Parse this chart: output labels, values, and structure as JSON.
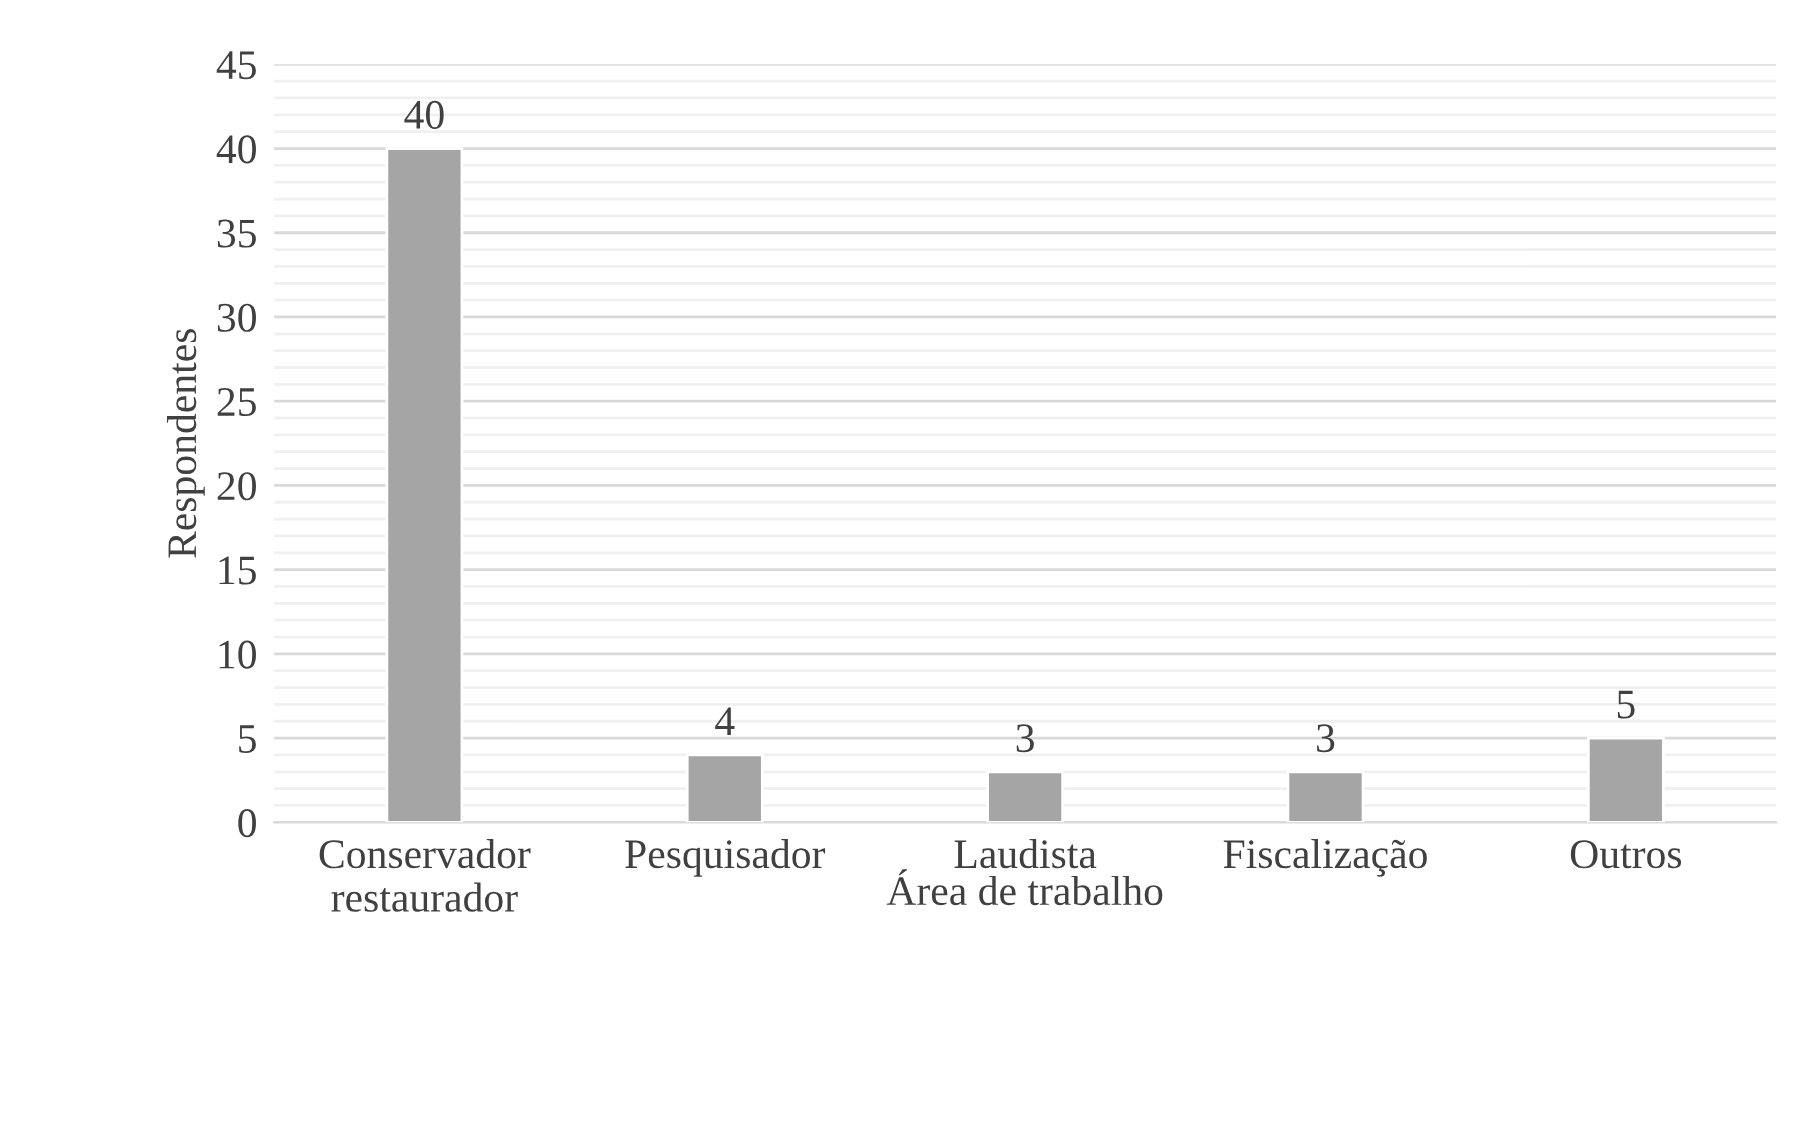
{
  "chart_data": {
    "type": "bar",
    "categories": [
      "Conservador\nrestaurador",
      "Pesquisador",
      "Laudista",
      "Fiscalização",
      "Outros"
    ],
    "values": [
      40,
      4,
      3,
      3,
      5
    ],
    "color": "#a5a5a5",
    "xlabel": "Área de trabalho",
    "ylabel": "Respondentes",
    "ylim": [
      0,
      45
    ],
    "yticks": [
      0,
      {
        "value": 1,
        "label": null
      },
      {
        "value": 2,
        "label": null
      },
      {
        "value": 3,
        "label": null
      },
      {
        "value": 4,
        "label": null
      },
      5,
      {
        "value": 6,
        "label": null
      },
      {
        "value": 7,
        "label": null
      },
      {
        "value": 8,
        "label": null
      },
      {
        "value": 9,
        "label": null
      },
      10,
      {
        "value": 11,
        "label": null
      },
      {
        "value": 12,
        "label": null
      },
      {
        "value": 13,
        "label": null
      },
      {
        "value": 14,
        "label": null
      },
      15,
      {
        "value": 16,
        "label": null
      },
      {
        "value": 17,
        "label": null
      },
      {
        "value": 18,
        "label": null
      },
      {
        "value": 19,
        "label": null
      },
      20,
      {
        "value": 21,
        "label": null
      },
      {
        "value": 22,
        "label": null
      },
      {
        "value": 23,
        "label": null
      },
      {
        "value": 24,
        "label": null
      },
      25,
      {
        "value": 26,
        "label": null
      },
      {
        "value": 27,
        "label": null
      },
      {
        "value": 28,
        "label": null
      },
      {
        "value": 29,
        "label": null
      },
      30,
      {
        "value": 31,
        "label": null
      },
      {
        "value": 32,
        "label": null
      },
      {
        "value": 33,
        "label": null
      },
      {
        "value": 34,
        "label": null
      },
      35,
      {
        "value": 36,
        "label": null
      },
      {
        "value": 37,
        "label": null
      },
      {
        "value": 38,
        "label": null
      },
      {
        "value": 39,
        "label": null
      },
      40,
      {
        "value": 41,
        "label": null
      },
      {
        "value": 42,
        "label": null
      },
      {
        "value": 43,
        "label": null
      },
      {
        "value": 44,
        "label": null
      },
      45
    ],
    "grid": "y",
    "data_labels": true
  }
}
